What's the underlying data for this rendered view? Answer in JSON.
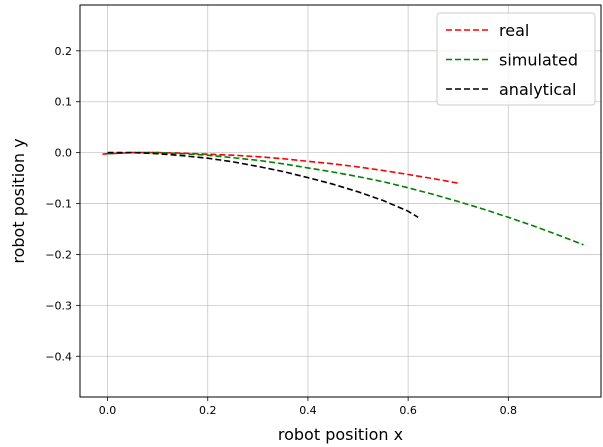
{
  "chart_data": {
    "type": "line",
    "title": "",
    "xlabel": "robot position x",
    "ylabel": "robot position y",
    "xlim": [
      -0.055,
      0.985
    ],
    "ylim": [
      -0.48,
      0.29
    ],
    "xticks": [
      0.0,
      0.2,
      0.4,
      0.6,
      0.8
    ],
    "xtick_labels": [
      "0.0",
      "0.2",
      "0.4",
      "0.6",
      "0.8"
    ],
    "yticks": [
      0.2,
      0.1,
      0.0,
      -0.1,
      -0.2,
      -0.3,
      -0.4
    ],
    "ytick_labels": [
      "0.2",
      "0.1",
      "0.0",
      "−0.1",
      "−0.2",
      "−0.3",
      "−0.4"
    ],
    "grid": true,
    "legend_position": "top-right",
    "series": [
      {
        "name": "real",
        "color": "#ff0000",
        "linestyle": "dashed",
        "x": [
          -0.01,
          0.0,
          0.05,
          0.1,
          0.15,
          0.2,
          0.25,
          0.3,
          0.35,
          0.4,
          0.45,
          0.5,
          0.55,
          0.6,
          0.65,
          0.7
        ],
        "y": [
          -0.003,
          -0.002,
          0.0,
          0.0,
          -0.001,
          -0.003,
          -0.005,
          -0.008,
          -0.012,
          -0.017,
          -0.022,
          -0.028,
          -0.035,
          -0.043,
          -0.051,
          -0.06
        ]
      },
      {
        "name": "simulated",
        "color": "#008000",
        "linestyle": "dashed",
        "x": [
          0.0,
          0.05,
          0.1,
          0.15,
          0.2,
          0.25,
          0.3,
          0.35,
          0.4,
          0.45,
          0.5,
          0.55,
          0.6,
          0.65,
          0.7,
          0.75,
          0.8,
          0.85,
          0.9,
          0.95
        ],
        "y": [
          -0.002,
          0.0,
          0.0,
          -0.002,
          -0.005,
          -0.01,
          -0.015,
          -0.022,
          -0.03,
          -0.038,
          -0.047,
          -0.057,
          -0.069,
          -0.082,
          -0.096,
          -0.111,
          -0.127,
          -0.144,
          -0.162,
          -0.181
        ]
      },
      {
        "name": "analytical",
        "color": "#000000",
        "linestyle": "dashed",
        "x": [
          0.0,
          0.05,
          0.1,
          0.15,
          0.2,
          0.25,
          0.3,
          0.35,
          0.4,
          0.45,
          0.5,
          0.55,
          0.6,
          0.62
        ],
        "y": [
          0.0,
          0.0,
          -0.002,
          -0.006,
          -0.011,
          -0.018,
          -0.027,
          -0.037,
          -0.049,
          -0.062,
          -0.077,
          -0.094,
          -0.115,
          -0.127
        ]
      }
    ]
  }
}
